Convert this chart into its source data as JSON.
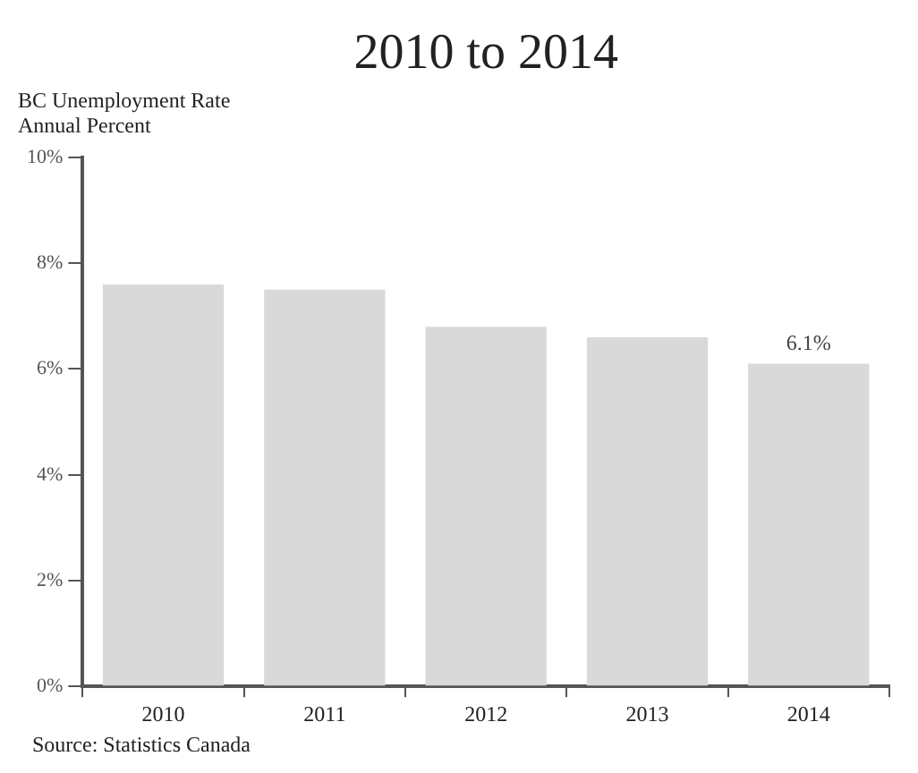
{
  "chart_data": {
    "type": "bar",
    "title": "2010 to 2014",
    "ylabel": "BC Unemployment Rate\nAnnual Percent",
    "categories": [
      "2010",
      "2011",
      "2012",
      "2013",
      "2014"
    ],
    "values": [
      7.6,
      7.5,
      6.8,
      6.6,
      6.1
    ],
    "color": "#d9d9d9",
    "value_labels": [
      null,
      null,
      null,
      null,
      "6.1%"
    ],
    "ylim": [
      0,
      10
    ],
    "yticks": [
      {
        "value": 0,
        "label": "0%"
      },
      {
        "value": 2,
        "label": "2%"
      },
      {
        "value": 4,
        "label": "4%"
      },
      {
        "value": 6,
        "label": "6%"
      },
      {
        "value": 8,
        "label": "8%"
      },
      {
        "value": 10,
        "label": "10%"
      }
    ],
    "annotations": [
      "Source: Statistics Canada"
    ]
  }
}
